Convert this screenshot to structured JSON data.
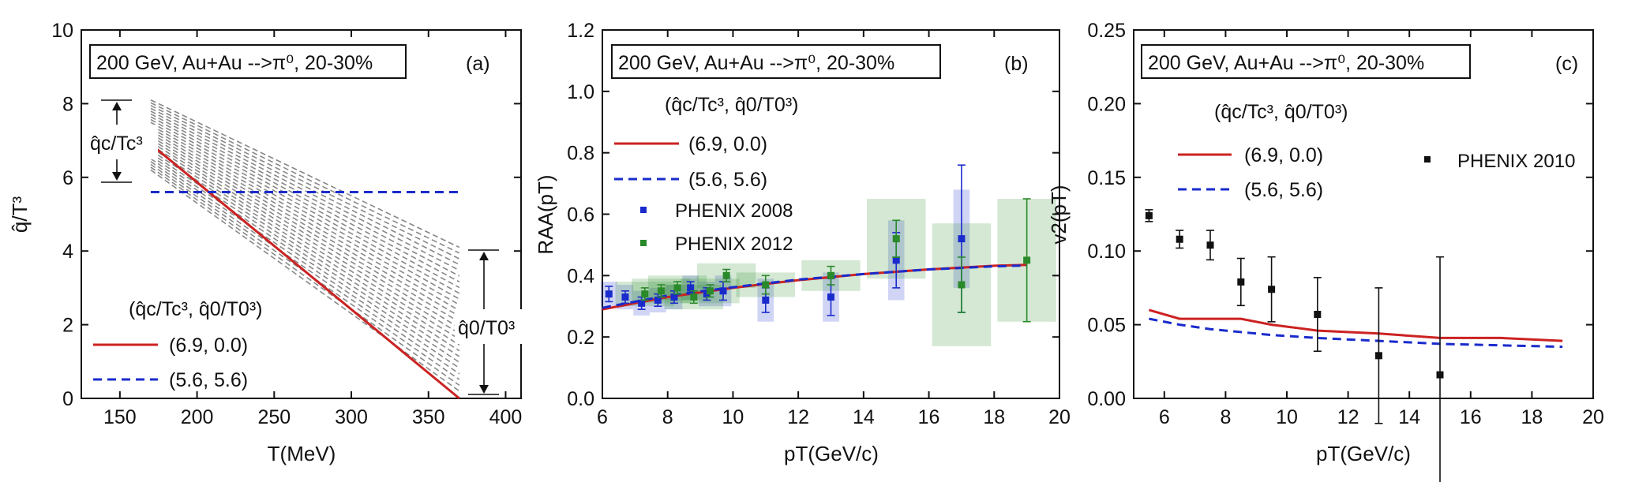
{
  "chart_data": [
    {
      "type": "line",
      "panel_label": "(a)",
      "box_text": "200 GeV, Au+Au -->π⁰, 20-30%",
      "xlabel": "T(MeV)",
      "ylabel": "q̂/T³",
      "xlim": [
        125,
        410
      ],
      "ylim": [
        0,
        10
      ],
      "xticks": [
        150,
        200,
        250,
        300,
        350,
        400
      ],
      "yticks": [
        0,
        2,
        4,
        6,
        8,
        10
      ],
      "legend_title": "(q̂c/Tc³, q̂0/T0³)",
      "legend_position": "lower-left",
      "annotations": [
        "q̂c/Tc³",
        "q̂0/T0³"
      ],
      "series": [
        {
          "name": "(6.9, 0.0)",
          "color": "#cc2222",
          "style": "solid",
          "x": [
            170,
            370
          ],
          "y": [
            6.9,
            0.0
          ]
        },
        {
          "name": "(5.6, 5.6)",
          "color": "#1a2bcc",
          "style": "dashed",
          "x": [
            170,
            370
          ],
          "y": [
            5.6,
            5.6
          ]
        }
      ],
      "scan_band": {
        "color": "#888888",
        "x_start": 170,
        "x_end": 370,
        "y_start_range": [
          6.2,
          8.1
        ],
        "y_end_range": [
          0.2,
          4.1
        ],
        "count": 26
      }
    },
    {
      "type": "line",
      "panel_label": "(b)",
      "box_text": "200 GeV, Au+Au -->π⁰, 20-30%",
      "xlabel": "pT(GeV/c)",
      "ylabel": "RAA(pT)",
      "xlim": [
        6,
        20
      ],
      "ylim": [
        0,
        1.2
      ],
      "xticks": [
        6,
        8,
        10,
        12,
        14,
        16,
        18,
        20
      ],
      "yticks": [
        0.0,
        0.2,
        0.4,
        0.6,
        0.8,
        1.0,
        1.2
      ],
      "legend_title": "(q̂c/Tc³, q̂0/T0³)",
      "legend_position": "upper-left",
      "series": [
        {
          "name": "(6.9, 0.0)",
          "color": "#cc2222",
          "style": "solid",
          "x": [
            6,
            8,
            10,
            12,
            14,
            16,
            18,
            19
          ],
          "y": [
            0.29,
            0.33,
            0.36,
            0.385,
            0.405,
            0.42,
            0.432,
            0.435
          ]
        },
        {
          "name": "(5.6, 5.6)",
          "color": "#1a2bcc",
          "style": "dashed",
          "x": [
            6,
            8,
            10,
            12,
            14,
            16,
            18,
            19
          ],
          "y": [
            0.295,
            0.335,
            0.362,
            0.387,
            0.405,
            0.42,
            0.43,
            0.433
          ]
        }
      ],
      "points": [
        {
          "name": "PHENIX 2008",
          "color": "#1a2bcc",
          "x": [
            6.2,
            6.7,
            7.2,
            7.7,
            8.2,
            8.7,
            9.2,
            9.7,
            11,
            13,
            15,
            17
          ],
          "y": [
            0.34,
            0.33,
            0.31,
            0.32,
            0.33,
            0.36,
            0.34,
            0.35,
            0.32,
            0.33,
            0.45,
            0.52
          ],
          "err": [
            0.025,
            0.02,
            0.02,
            0.02,
            0.02,
            0.02,
            0.02,
            0.03,
            0.04,
            0.06,
            0.09,
            0.24
          ],
          "sys_half_width": 0.25,
          "sys": [
            0.04,
            0.04,
            0.04,
            0.04,
            0.04,
            0.04,
            0.04,
            0.05,
            0.07,
            0.08,
            0.13,
            0.16
          ]
        },
        {
          "name": "PHENIX 2012",
          "color": "#2a8a2a",
          "x": [
            7.3,
            7.8,
            8.3,
            8.8,
            9.3,
            9.8,
            11,
            13,
            15,
            17,
            19
          ],
          "y": [
            0.34,
            0.35,
            0.36,
            0.33,
            0.35,
            0.4,
            0.37,
            0.4,
            0.52,
            0.37,
            0.45
          ],
          "err": [
            0.02,
            0.02,
            0.02,
            0.02,
            0.02,
            0.02,
            0.03,
            0.03,
            0.06,
            0.09,
            0.2
          ],
          "sys_half_width": 0.9,
          "sys": [
            0.04,
            0.04,
            0.04,
            0.04,
            0.04,
            0.04,
            0.04,
            0.05,
            0.13,
            0.2,
            0.2
          ]
        }
      ]
    },
    {
      "type": "line",
      "panel_label": "(c)",
      "box_text": "200 GeV, Au+Au -->π⁰, 20-30%",
      "xlabel": "pT(GeV/c)",
      "ylabel": "v2(pT)",
      "xlim": [
        5,
        20
      ],
      "ylim": [
        0,
        0.25
      ],
      "xticks": [
        6,
        8,
        10,
        12,
        14,
        16,
        18,
        20
      ],
      "yticks": [
        0.0,
        0.05,
        0.1,
        0.15,
        0.2,
        0.25
      ],
      "legend_title": "(q̂c/Tc³, q̂0/T0³)",
      "legend_position": "upper-left",
      "series": [
        {
          "name": "(6.9, 0.0)",
          "color": "#cc2222",
          "style": "solid",
          "x": [
            5.5,
            6.5,
            7.5,
            8.5,
            9.5,
            11,
            13,
            15,
            17,
            19
          ],
          "y": [
            0.06,
            0.054,
            0.054,
            0.054,
            0.05,
            0.046,
            0.044,
            0.041,
            0.041,
            0.039
          ]
        },
        {
          "name": "(5.6, 5.6)",
          "color": "#1a2bcc",
          "style": "dashed",
          "x": [
            5.5,
            6.5,
            7.5,
            8.5,
            9.5,
            11,
            13,
            15,
            17,
            19
          ],
          "y": [
            0.054,
            0.05,
            0.047,
            0.045,
            0.043,
            0.041,
            0.039,
            0.037,
            0.036,
            0.035
          ]
        }
      ],
      "points": [
        {
          "name": "PHENIX 2010",
          "color": "#111111",
          "x": [
            5.5,
            6.5,
            7.5,
            8.5,
            9.5,
            11,
            13,
            15
          ],
          "y": [
            0.124,
            0.108,
            0.104,
            0.079,
            0.074,
            0.057,
            0.029,
            0.016
          ],
          "err": [
            0.004,
            0.006,
            0.01,
            0.016,
            0.022,
            0.025,
            0.046,
            0.08
          ]
        }
      ]
    }
  ]
}
